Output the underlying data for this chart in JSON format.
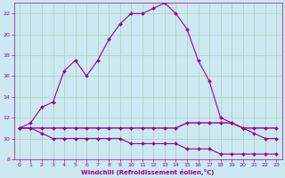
{
  "xlabel": "Windchill (Refroidissement éolien,°C)",
  "background_color": "#cce8f0",
  "grid_color": "#aaccbb",
  "line_color": "#990099",
  "xlim": [
    -0.5,
    23.5
  ],
  "ylim": [
    8,
    23
  ],
  "xtick_labels": [
    "0",
    "1",
    "2",
    "3",
    "4",
    "5",
    "6",
    "7",
    "8",
    "9",
    "10",
    "11",
    "12",
    "13",
    "14",
    "15",
    "16",
    "17",
    "18",
    "19",
    "20",
    "21",
    "22",
    "23"
  ],
  "xtick_positions": [
    0,
    1,
    2,
    3,
    4,
    5,
    6,
    7,
    8,
    9,
    10,
    11,
    12,
    13,
    14,
    15,
    16,
    17,
    18,
    19,
    20,
    21,
    22,
    23
  ],
  "ytick_positions": [
    8,
    10,
    12,
    14,
    16,
    18,
    20,
    22
  ],
  "ytick_labels": [
    "8",
    "10",
    "12",
    "14",
    "16",
    "18",
    "20",
    "22"
  ],
  "x_all": [
    0,
    1,
    2,
    3,
    4,
    5,
    6,
    7,
    8,
    9,
    10,
    11,
    12,
    13,
    14,
    15,
    16,
    17,
    18,
    19,
    20,
    21,
    22,
    23
  ],
  "y_series1": [
    11.0,
    11.5,
    13.0,
    13.5,
    16.5,
    17.5,
    16.0,
    17.5,
    19.5,
    21.0,
    22.0,
    22.0,
    22.5,
    23.0,
    22.0,
    20.5,
    17.5,
    15.5,
    12.0,
    11.5,
    11.0,
    10.5,
    10.0,
    10.0
  ],
  "y_series2": [
    11.0,
    11.0,
    11.0,
    11.0,
    11.0,
    11.0,
    11.0,
    11.0,
    11.0,
    11.0,
    11.0,
    11.0,
    11.0,
    11.0,
    11.0,
    11.5,
    11.5,
    11.5,
    11.5,
    11.5,
    11.0,
    11.0,
    11.0,
    11.0
  ],
  "y_series3": [
    11.0,
    11.0,
    10.5,
    10.0,
    10.0,
    10.0,
    10.0,
    10.0,
    10.0,
    10.0,
    9.5,
    9.5,
    9.5,
    9.5,
    9.5,
    9.0,
    9.0,
    9.0,
    8.5,
    8.5,
    8.5,
    8.5,
    8.5,
    8.5
  ]
}
